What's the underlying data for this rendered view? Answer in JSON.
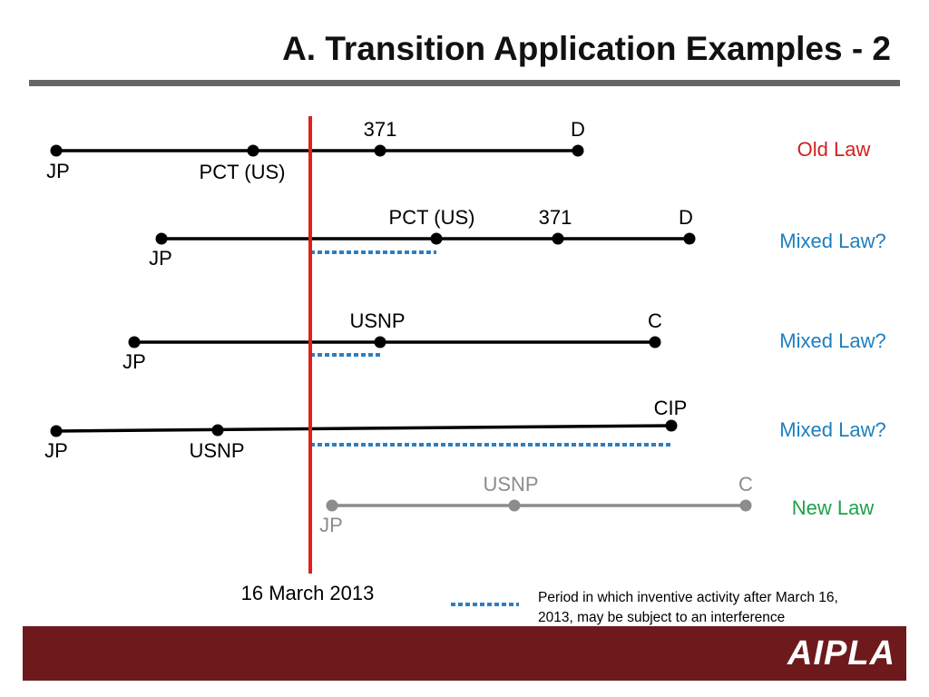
{
  "slide": {
    "title": "A. Transition Application Examples - 2",
    "brand": "AIPLA",
    "colors": {
      "cutoff_line": "#e0211c",
      "interference_dash": "#2e7ebf",
      "footer_bar": "#6e1a1d",
      "title_rule": "#666666",
      "timeline_active": "#000000",
      "timeline_future": "#8c8c8c"
    }
  },
  "cutoff": {
    "label": "16 March 2013"
  },
  "legend": {
    "line1": "Period in which inventive activity after March 16,",
    "line2": "2013, may be subject to an interference"
  },
  "timelines": [
    {
      "law_label": "Old Law",
      "law_color": "#d42020",
      "points": [
        "JP",
        "PCT (US)",
        "371",
        "D"
      ]
    },
    {
      "law_label": "Mixed Law?",
      "law_color": "#1e7fbf",
      "points": [
        "JP",
        "PCT (US)",
        "371",
        "D"
      ]
    },
    {
      "law_label": "Mixed Law?",
      "law_color": "#1e7fbf",
      "points": [
        "JP",
        "USNP",
        "C"
      ]
    },
    {
      "law_label": "Mixed Law?",
      "law_color": "#1e7fbf",
      "points": [
        "JP",
        "USNP",
        "CIP"
      ]
    },
    {
      "law_label": "New Law",
      "law_color": "#1ea14a",
      "points": [
        "JP",
        "USNP",
        "C"
      ]
    }
  ]
}
